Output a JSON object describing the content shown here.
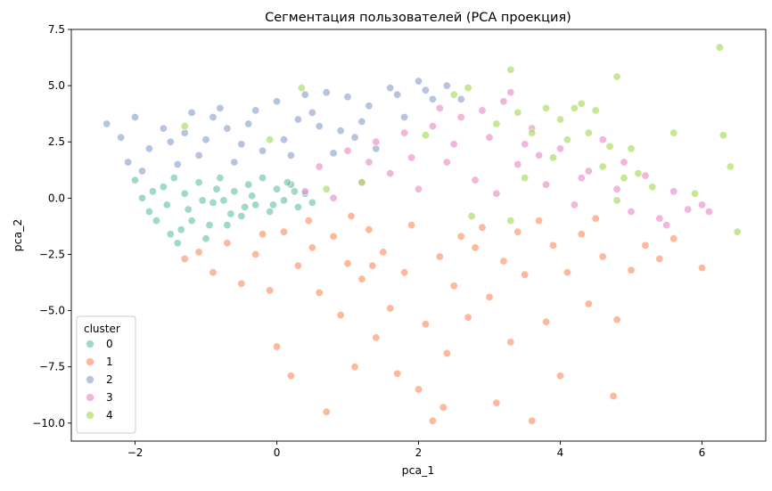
{
  "chart_data": {
    "type": "scatter",
    "title": "Сегментация пользователей (PCA проекция)",
    "xlabel": "pca_1",
    "ylabel": "pca_2",
    "xlim": [
      -2.9,
      6.9
    ],
    "ylim": [
      -10.8,
      7.5
    ],
    "xticks": [
      -2,
      0,
      2,
      4,
      6
    ],
    "yticks": [
      -10.0,
      -7.5,
      -5.0,
      -2.5,
      0.0,
      2.5,
      5.0,
      7.5
    ],
    "xtick_labels": [
      "−2",
      "0",
      "2",
      "4",
      "6"
    ],
    "ytick_labels": [
      "−10.0",
      "−7.5",
      "−5.0",
      "−2.5",
      "0.0",
      "2.5",
      "5.0",
      "7.5"
    ],
    "grid": false,
    "legend": {
      "title": "cluster",
      "placement": "lower-left"
    },
    "series": [
      {
        "name": "0",
        "color": "#66c2a5",
        "points": [
          [
            -2.0,
            0.8
          ],
          [
            -1.9,
            0.0
          ],
          [
            -1.8,
            -0.6
          ],
          [
            -1.7,
            -1.0
          ],
          [
            -1.6,
            0.5
          ],
          [
            -1.5,
            -1.6
          ],
          [
            -1.4,
            -2.0
          ],
          [
            -1.3,
            0.2
          ],
          [
            -1.2,
            -1.0
          ],
          [
            -1.1,
            0.7
          ],
          [
            -1.0,
            -1.8
          ],
          [
            -0.9,
            -0.2
          ],
          [
            -0.8,
            0.9
          ],
          [
            -0.7,
            -1.2
          ],
          [
            -0.6,
            0.3
          ],
          [
            -0.5,
            -0.8
          ],
          [
            -0.4,
            0.6
          ],
          [
            -0.3,
            -0.3
          ],
          [
            -0.2,
            0.9
          ],
          [
            -0.1,
            -0.6
          ],
          [
            0.0,
            0.4
          ],
          [
            0.1,
            -0.1
          ],
          [
            0.2,
            0.6
          ],
          [
            0.3,
            -0.4
          ],
          [
            0.4,
            0.2
          ],
          [
            0.5,
            -0.2
          ],
          [
            -1.75,
            0.3
          ],
          [
            -1.45,
            0.9
          ],
          [
            -1.25,
            -0.5
          ],
          [
            -0.95,
            -1.2
          ],
          [
            -0.65,
            -0.7
          ],
          [
            -0.35,
            0.1
          ],
          [
            -0.05,
            -0.3
          ],
          [
            0.25,
            0.3
          ],
          [
            -1.55,
            -0.3
          ],
          [
            -0.85,
            0.4
          ],
          [
            -1.35,
            -1.4
          ],
          [
            -1.05,
            -0.1
          ],
          [
            -0.45,
            -0.4
          ],
          [
            -0.75,
            -0.1
          ],
          [
            0.15,
            0.7
          ]
        ]
      },
      {
        "name": "1",
        "color": "#fc8d62",
        "points": [
          [
            -1.3,
            -2.7
          ],
          [
            -1.1,
            -2.4
          ],
          [
            -0.9,
            -3.3
          ],
          [
            -0.7,
            -2.0
          ],
          [
            -0.5,
            -3.8
          ],
          [
            -0.3,
            -2.5
          ],
          [
            -0.1,
            -4.1
          ],
          [
            0.0,
            -6.6
          ],
          [
            0.1,
            -1.5
          ],
          [
            0.2,
            -7.9
          ],
          [
            0.3,
            -3.0
          ],
          [
            0.5,
            -2.2
          ],
          [
            0.6,
            -4.2
          ],
          [
            0.7,
            -9.5
          ],
          [
            0.8,
            -1.7
          ],
          [
            0.9,
            -5.2
          ],
          [
            1.0,
            -2.9
          ],
          [
            1.1,
            -7.5
          ],
          [
            1.2,
            -3.6
          ],
          [
            1.3,
            -1.4
          ],
          [
            1.4,
            -6.2
          ],
          [
            1.5,
            -2.4
          ],
          [
            1.6,
            -4.9
          ],
          [
            1.7,
            -7.8
          ],
          [
            1.8,
            -3.3
          ],
          [
            1.9,
            -1.2
          ],
          [
            2.0,
            -8.5
          ],
          [
            2.1,
            -5.6
          ],
          [
            2.2,
            -9.9
          ],
          [
            2.3,
            -2.6
          ],
          [
            2.4,
            -6.9
          ],
          [
            2.5,
            -3.9
          ],
          [
            2.6,
            -1.7
          ],
          [
            2.7,
            -5.3
          ],
          [
            2.8,
            -2.2
          ],
          [
            3.0,
            -4.4
          ],
          [
            3.1,
            -9.1
          ],
          [
            3.2,
            -2.8
          ],
          [
            3.3,
            -6.4
          ],
          [
            3.4,
            -1.5
          ],
          [
            3.5,
            -3.4
          ],
          [
            3.6,
            -9.9
          ],
          [
            3.8,
            -5.5
          ],
          [
            3.9,
            -2.1
          ],
          [
            4.0,
            -7.9
          ],
          [
            4.1,
            -3.3
          ],
          [
            4.3,
            -1.6
          ],
          [
            4.4,
            -4.7
          ],
          [
            4.6,
            -2.6
          ],
          [
            4.75,
            -8.8
          ],
          [
            4.8,
            -5.4
          ],
          [
            5.0,
            -3.2
          ],
          [
            5.2,
            -2.1
          ],
          [
            5.4,
            -2.7
          ],
          [
            5.6,
            -1.8
          ],
          [
            6.0,
            -3.1
          ],
          [
            2.35,
            -9.3
          ],
          [
            1.35,
            -3.0
          ],
          [
            0.45,
            -1.0
          ],
          [
            2.9,
            -1.3
          ],
          [
            3.7,
            -1.0
          ],
          [
            4.5,
            -0.9
          ],
          [
            1.05,
            -0.8
          ],
          [
            -0.2,
            -1.6
          ]
        ]
      },
      {
        "name": "2",
        "color": "#8da0cb",
        "points": [
          [
            -2.4,
            3.3
          ],
          [
            -2.2,
            2.7
          ],
          [
            -2.1,
            1.6
          ],
          [
            -2.0,
            3.6
          ],
          [
            -1.8,
            2.2
          ],
          [
            -1.6,
            3.1
          ],
          [
            -1.4,
            1.5
          ],
          [
            -1.2,
            3.8
          ],
          [
            -1.0,
            2.6
          ],
          [
            -0.8,
            4.0
          ],
          [
            -0.6,
            1.6
          ],
          [
            -0.4,
            3.3
          ],
          [
            -0.2,
            2.1
          ],
          [
            0.0,
            4.3
          ],
          [
            0.2,
            1.9
          ],
          [
            0.4,
            4.6
          ],
          [
            0.6,
            3.2
          ],
          [
            0.8,
            2.0
          ],
          [
            1.0,
            4.5
          ],
          [
            1.2,
            3.4
          ],
          [
            1.4,
            2.2
          ],
          [
            1.6,
            4.9
          ],
          [
            1.8,
            3.6
          ],
          [
            2.0,
            5.2
          ],
          [
            2.2,
            4.4
          ],
          [
            2.4,
            5.0
          ],
          [
            2.6,
            4.4
          ],
          [
            -1.9,
            1.2
          ],
          [
            -1.5,
            2.5
          ],
          [
            -1.1,
            1.9
          ],
          [
            -0.7,
            3.1
          ],
          [
            -0.3,
            3.9
          ],
          [
            0.1,
            2.6
          ],
          [
            0.5,
            3.8
          ],
          [
            0.9,
            3.0
          ],
          [
            1.3,
            4.1
          ],
          [
            1.7,
            4.6
          ],
          [
            2.1,
            4.8
          ],
          [
            -1.3,
            2.9
          ],
          [
            -0.9,
            3.6
          ],
          [
            -0.5,
            2.4
          ],
          [
            0.3,
            3.5
          ],
          [
            0.7,
            4.7
          ],
          [
            1.1,
            2.7
          ]
        ]
      },
      {
        "name": "3",
        "color": "#e78ac3",
        "points": [
          [
            0.4,
            0.3
          ],
          [
            0.6,
            1.4
          ],
          [
            0.8,
            0.0
          ],
          [
            1.0,
            2.1
          ],
          [
            1.2,
            0.7
          ],
          [
            1.4,
            2.5
          ],
          [
            1.6,
            1.1
          ],
          [
            1.8,
            2.9
          ],
          [
            2.0,
            0.4
          ],
          [
            2.2,
            3.2
          ],
          [
            2.4,
            1.6
          ],
          [
            2.6,
            3.6
          ],
          [
            2.8,
            0.8
          ],
          [
            3.0,
            2.7
          ],
          [
            3.2,
            4.3
          ],
          [
            3.4,
            1.5
          ],
          [
            3.6,
            3.1
          ],
          [
            3.8,
            0.6
          ],
          [
            4.0,
            2.2
          ],
          [
            4.2,
            -0.3
          ],
          [
            4.4,
            1.2
          ],
          [
            4.6,
            2.6
          ],
          [
            4.8,
            0.4
          ],
          [
            5.0,
            -0.6
          ],
          [
            5.2,
            1.0
          ],
          [
            5.4,
            -0.9
          ],
          [
            5.6,
            0.3
          ],
          [
            5.8,
            -0.5
          ],
          [
            6.0,
            -0.3
          ],
          [
            6.1,
            -0.6
          ],
          [
            5.5,
            -1.2
          ],
          [
            1.3,
            1.6
          ],
          [
            1.9,
            1.8
          ],
          [
            2.5,
            2.4
          ],
          [
            3.1,
            0.2
          ],
          [
            3.7,
            1.9
          ],
          [
            4.3,
            0.9
          ],
          [
            4.9,
            1.6
          ],
          [
            2.3,
            4.0
          ],
          [
            2.9,
            3.9
          ],
          [
            3.3,
            4.7
          ],
          [
            3.5,
            2.4
          ]
        ]
      },
      {
        "name": "4",
        "color": "#a6d854",
        "points": [
          [
            6.25,
            6.7
          ],
          [
            6.3,
            2.8
          ],
          [
            6.4,
            1.4
          ],
          [
            6.5,
            -1.5
          ],
          [
            5.6,
            2.9
          ],
          [
            5.9,
            0.2
          ],
          [
            4.8,
            5.4
          ],
          [
            3.3,
            5.7
          ],
          [
            2.7,
            4.9
          ],
          [
            2.5,
            4.6
          ],
          [
            3.1,
            3.3
          ],
          [
            3.4,
            3.8
          ],
          [
            3.6,
            2.9
          ],
          [
            3.8,
            4.0
          ],
          [
            4.0,
            3.5
          ],
          [
            4.1,
            2.6
          ],
          [
            4.2,
            4.0
          ],
          [
            4.4,
            2.9
          ],
          [
            4.5,
            3.9
          ],
          [
            4.6,
            1.4
          ],
          [
            4.7,
            2.3
          ],
          [
            4.9,
            0.9
          ],
          [
            5.0,
            2.2
          ],
          [
            5.1,
            1.1
          ],
          [
            4.3,
            4.2
          ],
          [
            3.9,
            1.8
          ],
          [
            3.5,
            0.9
          ],
          [
            4.8,
            -0.1
          ],
          [
            5.3,
            0.5
          ],
          [
            0.35,
            4.9
          ],
          [
            -0.1,
            2.6
          ],
          [
            -1.3,
            3.2
          ],
          [
            2.75,
            -0.8
          ],
          [
            3.3,
            -1.0
          ],
          [
            2.1,
            2.8
          ],
          [
            1.2,
            0.7
          ],
          [
            0.7,
            0.4
          ]
        ]
      }
    ]
  }
}
